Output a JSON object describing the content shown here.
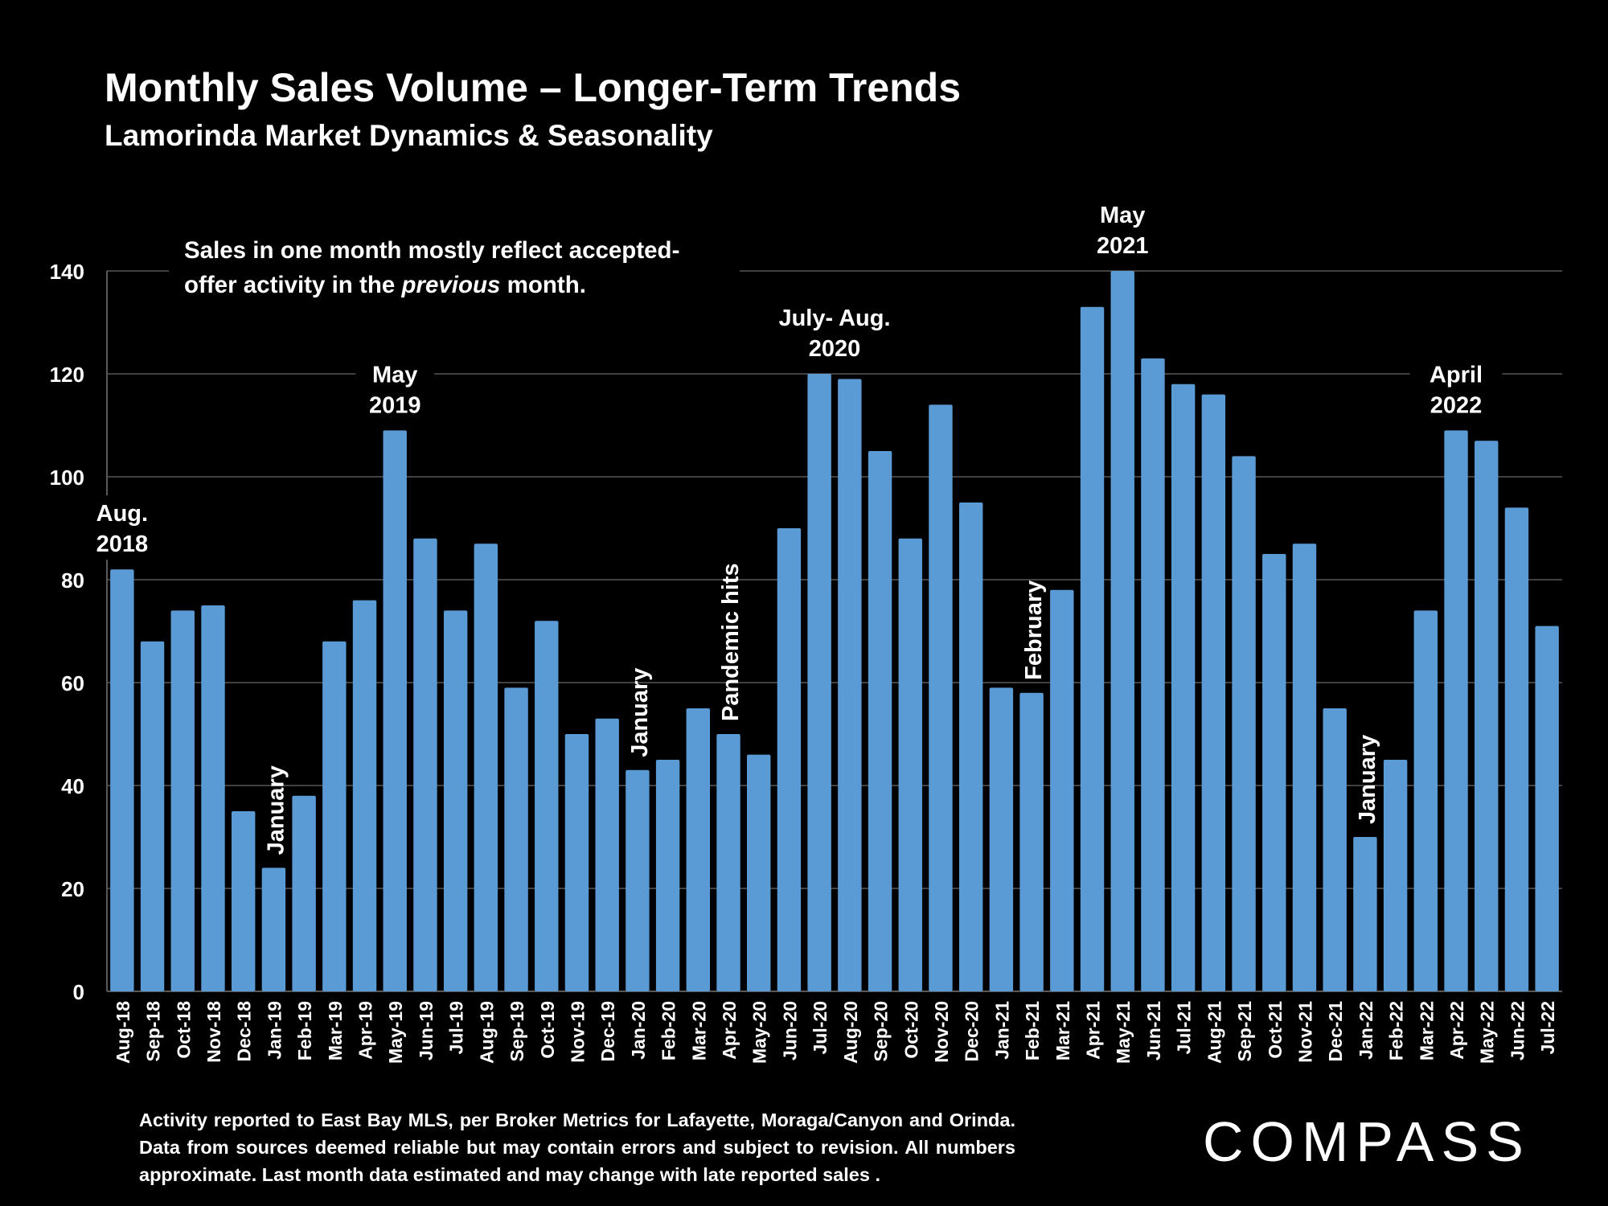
{
  "title": "Monthly Sales Volume – Longer-Term Trends",
  "subtitle": "Lamorinda Market Dynamics & Seasonality",
  "note": {
    "line1": "Sales in one month mostly reflect accepted-",
    "line2_before": "offer activity in the ",
    "line2_italic": "previous",
    "line2_after": " month."
  },
  "footnote": "Activity reported to East Bay MLS, per Broker Metrics for Lafayette, Moraga/Canyon and Orinda. Data from sources deemed reliable but may contain errors and subject to revision. All numbers approximate. Last month data estimated and may change with late reported sales .",
  "brand": "COMPASS",
  "colors": {
    "bar": "#5b9bd5",
    "background": "#000000",
    "text": "#ffffff",
    "grid": "#595959"
  },
  "chart_data": {
    "type": "bar",
    "categories": [
      "Aug-18",
      "Sep-18",
      "Oct-18",
      "Nov-18",
      "Dec-18",
      "Jan-19",
      "Feb-19",
      "Mar-19",
      "Apr-19",
      "May-19",
      "Jun-19",
      "Jul-19",
      "Aug-19",
      "Sep-19",
      "Oct-19",
      "Nov-19",
      "Dec-19",
      "Jan-20",
      "Feb-20",
      "Mar-20",
      "Apr-20",
      "May-20",
      "Jun-20",
      "Jul-20",
      "Aug-20",
      "Sep-20",
      "Oct-20",
      "Nov-20",
      "Dec-20",
      "Jan-21",
      "Feb-21",
      "Mar-21",
      "Apr-21",
      "May-21",
      "Jun-21",
      "Jul-21",
      "Aug-21",
      "Sep-21",
      "Oct-21",
      "Nov-21",
      "Dec-21",
      "Jan-22",
      "Feb-22",
      "Mar-22",
      "Apr-22",
      "May-22",
      "Jun-22",
      "Jul-22"
    ],
    "values": [
      82,
      68,
      74,
      75,
      35,
      24,
      38,
      68,
      76,
      109,
      88,
      74,
      87,
      59,
      72,
      50,
      53,
      43,
      45,
      55,
      50,
      46,
      90,
      120,
      119,
      105,
      88,
      114,
      95,
      59,
      58,
      78,
      133,
      140,
      123,
      118,
      116,
      104,
      85,
      87,
      55,
      30,
      45,
      74,
      109,
      107,
      94,
      71
    ],
    "ylim": [
      0,
      140
    ],
    "yticks": [
      0,
      20,
      40,
      60,
      80,
      100,
      120,
      140
    ],
    "grid": true,
    "annotations": [
      {
        "index": 0,
        "lines": [
          "Aug.",
          "2018"
        ],
        "rotated": false
      },
      {
        "index": 5,
        "lines": [
          "January"
        ],
        "rotated": true
      },
      {
        "index": 9,
        "lines": [
          "May",
          "2019"
        ],
        "rotated": false
      },
      {
        "index": 17,
        "lines": [
          "January"
        ],
        "rotated": true
      },
      {
        "index": 20,
        "lines": [
          "Pandemic hits"
        ],
        "rotated": true
      },
      {
        "index": 23.5,
        "lines": [
          "July- Aug.",
          "2020"
        ],
        "rotated": false
      },
      {
        "index": 30,
        "lines": [
          "February"
        ],
        "rotated": true
      },
      {
        "index": 33,
        "lines": [
          "May",
          "2021"
        ],
        "rotated": false
      },
      {
        "index": 41,
        "lines": [
          "January"
        ],
        "rotated": true
      },
      {
        "index": 44,
        "lines": [
          "April",
          "2022"
        ],
        "rotated": false
      }
    ]
  }
}
